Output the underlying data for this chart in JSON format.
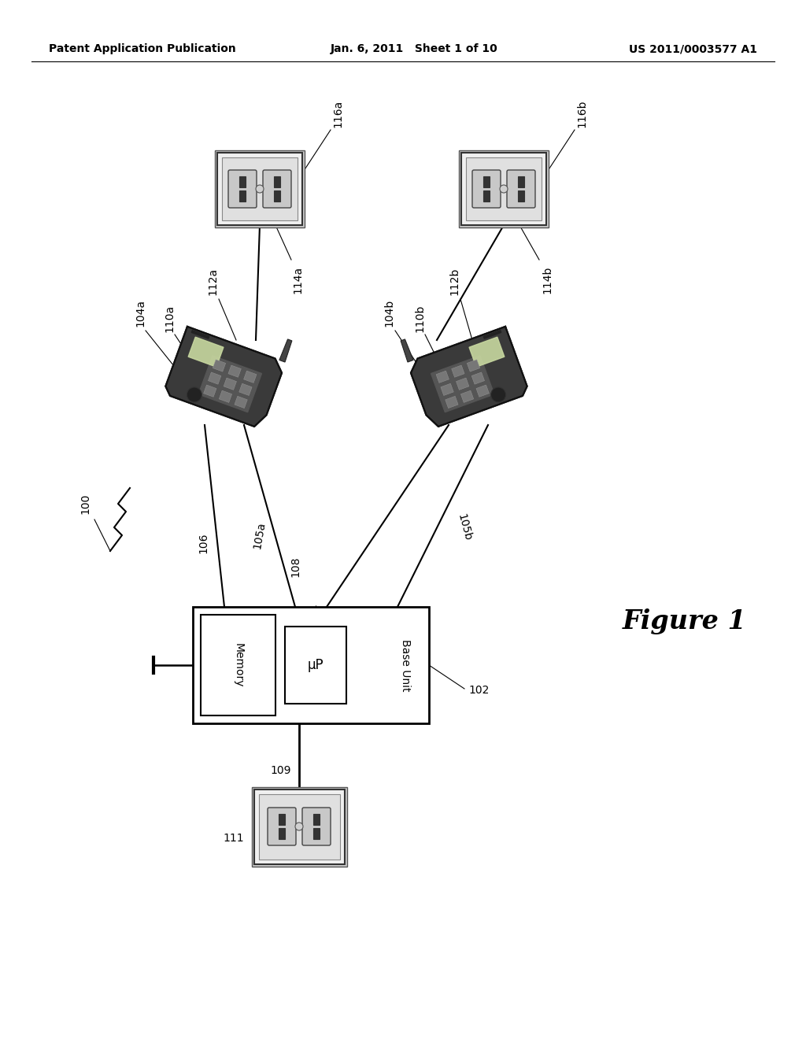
{
  "bg": "#ffffff",
  "hdr_left": "Patent Application Publication",
  "hdr_mid": "Jan. 6, 2011   Sheet 1 of 10",
  "hdr_right": "US 2011/0003577 A1",
  "fig_label": "Figure 1",
  "lbl_100": "100",
  "lbl_102": "102",
  "lbl_104a": "104a",
  "lbl_104b": "104b",
  "lbl_105a": "105a",
  "lbl_105b": "105b",
  "lbl_106": "106",
  "lbl_108": "108",
  "lbl_109": "109",
  "lbl_110a": "110a",
  "lbl_110b": "110b",
  "lbl_111": "111",
  "lbl_112a": "112a",
  "lbl_112b": "112b",
  "lbl_114a": "114a",
  "lbl_114b": "114b",
  "lbl_116a": "116a",
  "lbl_116b": "116b",
  "mem_txt": "Memory",
  "up_txt": "μP",
  "bu_txt": "Base Unit",
  "phone_body": "#4a4a4a",
  "phone_light": "#888888",
  "phone_dark": "#2a2a2a",
  "outlet_bg": "#e8e8e8",
  "line_color": "#000000"
}
